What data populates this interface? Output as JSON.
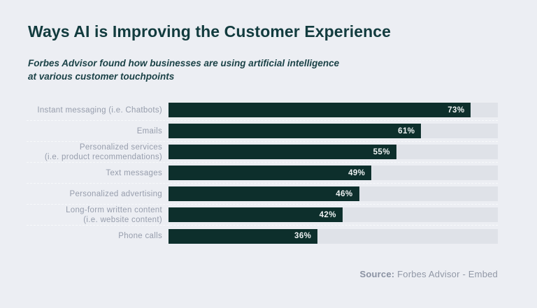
{
  "page": {
    "background": "#eceef3"
  },
  "header": {
    "title": "Ways AI is Improving the Customer Experience",
    "subtitle": "Forbes Advisor found how businesses are using artificial intelligence\nat various customer touchpoints"
  },
  "chart_data": {
    "type": "bar",
    "orientation": "horizontal",
    "title": "Ways AI is Improving the Customer Experience",
    "subtitle": "Forbes Advisor found how businesses are using artificial intelligence at various customer touchpoints",
    "categories": [
      "Instant messaging (i.e. Chatbots)",
      "Emails",
      "Personalized services\n(i.e. product recommendations)",
      "Text messages",
      "Personalized advertising",
      "Long-form written content\n(i.e. website content)",
      "Phone calls"
    ],
    "values": [
      73,
      61,
      55,
      49,
      46,
      42,
      36
    ],
    "value_suffix": "%",
    "xlabel": "",
    "ylabel": "",
    "xlim": [
      0,
      79.5
    ],
    "grid": false,
    "legend": false,
    "bar_color": "#0d2f2c",
    "track_color": "#dfe2e8",
    "value_label_color": "#eef2f3",
    "category_label_color": "#969dac",
    "title_color": "#123b3e"
  },
  "footer": {
    "source_label": "Source:",
    "source_text": " Forbes Advisor - Embed"
  }
}
